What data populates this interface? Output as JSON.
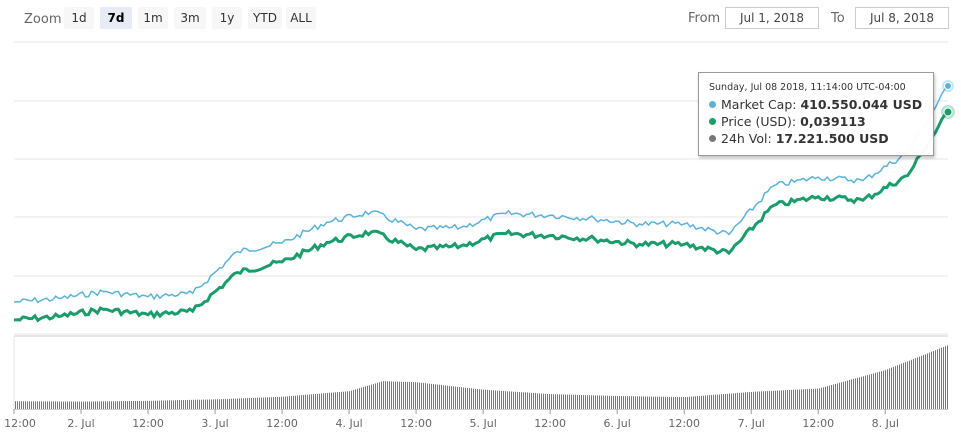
{
  "toolbar": {
    "zoom_label": "Zoom",
    "zoom_buttons": [
      "1d",
      "7d",
      "1m",
      "3m",
      "1y",
      "YTD",
      "ALL"
    ],
    "active_zoom": "7d",
    "from_label": "From",
    "from_value": "Jul 1, 2018",
    "to_label": "To",
    "to_value": "Jul 8, 2018"
  },
  "tooltip": {
    "time": "Sunday, Jul 08 2018, 11:14:00 UTC-04:00",
    "rows": [
      {
        "label": "Market Cap:",
        "value": "410.550.044 USD",
        "color": "#5ab2d8"
      },
      {
        "label": "Price (USD):",
        "value": "0,039113",
        "color": "#1a9c6b"
      },
      {
        "label": "24h Vol:",
        "value": "17.221.500 USD",
        "color": "#777777"
      }
    ]
  },
  "chart_data": {
    "type": "line",
    "x_tick_labels": [
      "12:00",
      "2. Jul",
      "12:00",
      "3. Jul",
      "12:00",
      "4. Jul",
      "12:00",
      "5. Jul",
      "12:00",
      "6. Jul",
      "12:00",
      "7. Jul",
      "12:00",
      "8. Jul"
    ],
    "y_axis": "hidden",
    "grid": true,
    "series": [
      {
        "name": "Market Cap",
        "color": "#5ab2d8",
        "unit": "USD",
        "x": [
          "Jul 1 12:00",
          "Jul 1 20:00",
          "Jul 2 04:00",
          "Jul 2 12:00",
          "Jul 2 20:00",
          "Jul 3 04:00",
          "Jul 3 12:00",
          "Jul 3 20:00",
          "Jul 4 04:00",
          "Jul 4 12:00",
          "Jul 4 20:00",
          "Jul 5 04:00",
          "Jul 5 12:00",
          "Jul 5 20:00",
          "Jul 6 04:00",
          "Jul 6 12:00",
          "Jul 6 20:00",
          "Jul 7 04:00",
          "Jul 7 12:00",
          "Jul 7 20:00",
          "Jul 8 04:00",
          "Jul 8 11:14"
        ],
        "values": [
          286,
          288,
          292,
          289,
          291,
          315,
          320,
          332,
          338,
          328,
          329,
          337,
          336,
          334,
          331,
          331,
          325,
          353,
          358,
          356,
          372,
          410.55
        ]
      },
      {
        "name": "Price (USD)",
        "color": "#1a9c6b",
        "unit": "USD",
        "x": [
          "Jul 1 12:00",
          "Jul 1 20:00",
          "Jul 2 04:00",
          "Jul 2 12:00",
          "Jul 2 20:00",
          "Jul 3 04:00",
          "Jul 3 12:00",
          "Jul 3 20:00",
          "Jul 4 04:00",
          "Jul 4 12:00",
          "Jul 4 20:00",
          "Jul 5 04:00",
          "Jul 5 12:00",
          "Jul 5 20:00",
          "Jul 6 04:00",
          "Jul 6 12:00",
          "Jul 6 20:00",
          "Jul 7 04:00",
          "Jul 7 12:00",
          "Jul 7 20:00",
          "Jul 8 04:00",
          "Jul 8 11:14"
        ],
        "values": [
          0.0273,
          0.0275,
          0.0279,
          0.0276,
          0.0278,
          0.03,
          0.0306,
          0.0317,
          0.0323,
          0.0313,
          0.0315,
          0.0322,
          0.0321,
          0.0319,
          0.0316,
          0.0316,
          0.0311,
          0.0338,
          0.0343,
          0.0341,
          0.0355,
          0.039113
        ]
      },
      {
        "name": "24h Vol",
        "color": "#777777",
        "type": "bar",
        "unit": "USD",
        "x": [
          "Jul 1 12:00",
          "Jul 2 00:00",
          "Jul 2 12:00",
          "Jul 3 00:00",
          "Jul 3 12:00",
          "Jul 4 00:00",
          "Jul 4 06:00",
          "Jul 4 12:00",
          "Jul 5 00:00",
          "Jul 5 12:00",
          "Jul 6 00:00",
          "Jul 6 12:00",
          "Jul 7 00:00",
          "Jul 7 12:00",
          "Jul 8 00:00",
          "Jul 8 11:14"
        ],
        "values": [
          2.1,
          2.0,
          2.2,
          2.6,
          3.3,
          4.8,
          7.5,
          7.2,
          5.2,
          4.0,
          3.5,
          3.2,
          4.6,
          5.5,
          10.5,
          17.22
        ]
      }
    ]
  }
}
